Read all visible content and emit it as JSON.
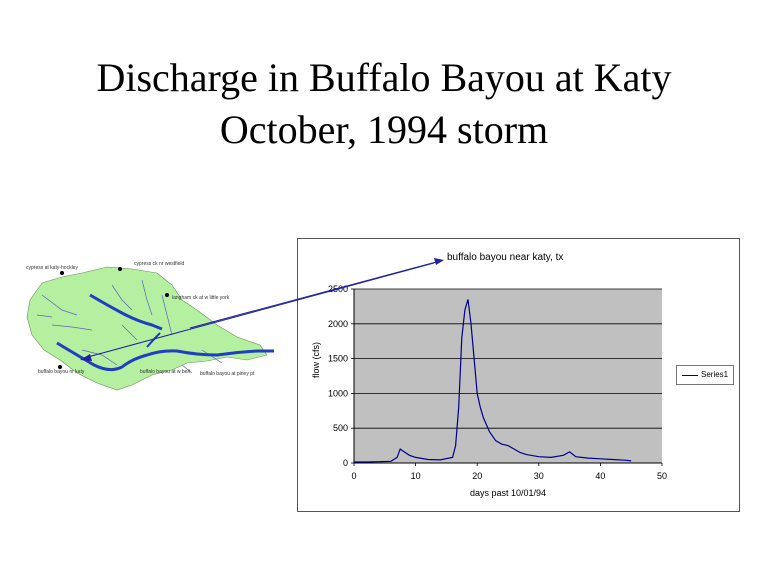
{
  "slide": {
    "title_line1": "Discharge in Buffalo Bayou at Katy",
    "title_line2": "October, 1994 storm"
  },
  "map": {
    "labels": [
      "cypress at katy-hockley",
      "cypress ck nr westfield",
      "langham ck at w little york",
      "buffalo bayou nr katy",
      "buffalo bayou at w belt",
      "buffalo bayou at piney pt"
    ],
    "colors": {
      "land": "#b5f0a0",
      "river": "#1f3fbf",
      "stream": "#6060c0"
    }
  },
  "arrow": {
    "color": "#2020a0"
  },
  "chart_data": {
    "type": "line",
    "title": "buffalo bayou near katy, tx",
    "xlabel": "days past 10/01/94",
    "ylabel": "flow (cfs)",
    "xlim": [
      0,
      50
    ],
    "ylim": [
      0,
      2500
    ],
    "x_ticks": [
      "0",
      "10",
      "20",
      "30",
      "40",
      "50"
    ],
    "y_ticks": [
      "0",
      "500",
      "1000",
      "1500",
      "2000",
      "2500"
    ],
    "grid": "horizontal",
    "legend": "right",
    "plot_background": "#c0c0c0",
    "line_color": "#00008b",
    "series": [
      {
        "name": "Series1",
        "x": [
          0,
          2,
          4,
          6,
          7,
          7.5,
          8,
          9,
          10,
          12,
          14,
          16,
          16.5,
          17,
          17.5,
          18,
          18.5,
          19,
          19.5,
          20,
          20.5,
          21,
          22,
          23,
          24,
          25,
          26,
          27,
          28,
          30,
          32,
          34,
          35,
          36,
          38,
          40,
          42,
          44,
          45
        ],
        "y": [
          15,
          15,
          18,
          25,
          80,
          200,
          170,
          110,
          80,
          50,
          45,
          80,
          250,
          800,
          1800,
          2200,
          2350,
          2000,
          1500,
          1000,
          800,
          650,
          450,
          320,
          270,
          250,
          200,
          150,
          120,
          90,
          80,
          110,
          160,
          90,
          70,
          60,
          50,
          40,
          30
        ]
      }
    ],
    "legend_entries": [
      "Series1"
    ]
  }
}
